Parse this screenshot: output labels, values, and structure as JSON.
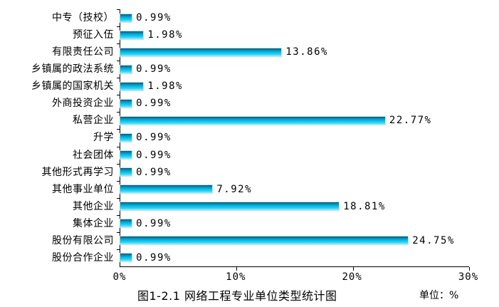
{
  "chart_data": {
    "type": "bar",
    "orientation": "horizontal",
    "title": "图1-2.1 网络工程专业单位类型统计图",
    "unit_label": "单位：%",
    "categories": [
      "中专（技校）",
      "预征入伍",
      "有限责任公司",
      "乡镇属的政法系统",
      "乡镇属的国家机关",
      "外商投资企业",
      "私营企业",
      "升学",
      "社会团体",
      "其他形式再学习",
      "其他事业单位",
      "其他企业",
      "集体企业",
      "股份有限公司",
      "股份合作企业"
    ],
    "values": [
      0.99,
      1.98,
      13.86,
      0.99,
      1.98,
      0.99,
      22.77,
      0.99,
      0.99,
      0.99,
      7.92,
      18.81,
      0.99,
      24.75,
      0.99
    ],
    "value_labels": [
      "0.99%",
      "1.98%",
      "13.86%",
      "0.99%",
      "1.98%",
      "0.99%",
      "22.77%",
      "0.99%",
      "0.99%",
      "0.99%",
      "7.92%",
      "18.81%",
      "0.99%",
      "24.75%",
      "0.99%"
    ],
    "xlim": [
      0,
      30
    ],
    "x_tick_labels": [
      "0%",
      "10%",
      "20%",
      "30%"
    ],
    "x_tick_values": [
      0,
      10,
      20,
      30
    ],
    "grid": false,
    "legend": false,
    "colors": {
      "background": "#ffffff",
      "axis": "#000000",
      "text": "#000000",
      "bar_gradient": [
        "#1b4a66",
        "#0a85ad",
        "#00c0ea",
        "#3bd4f4",
        "#a9ecfb"
      ]
    }
  }
}
